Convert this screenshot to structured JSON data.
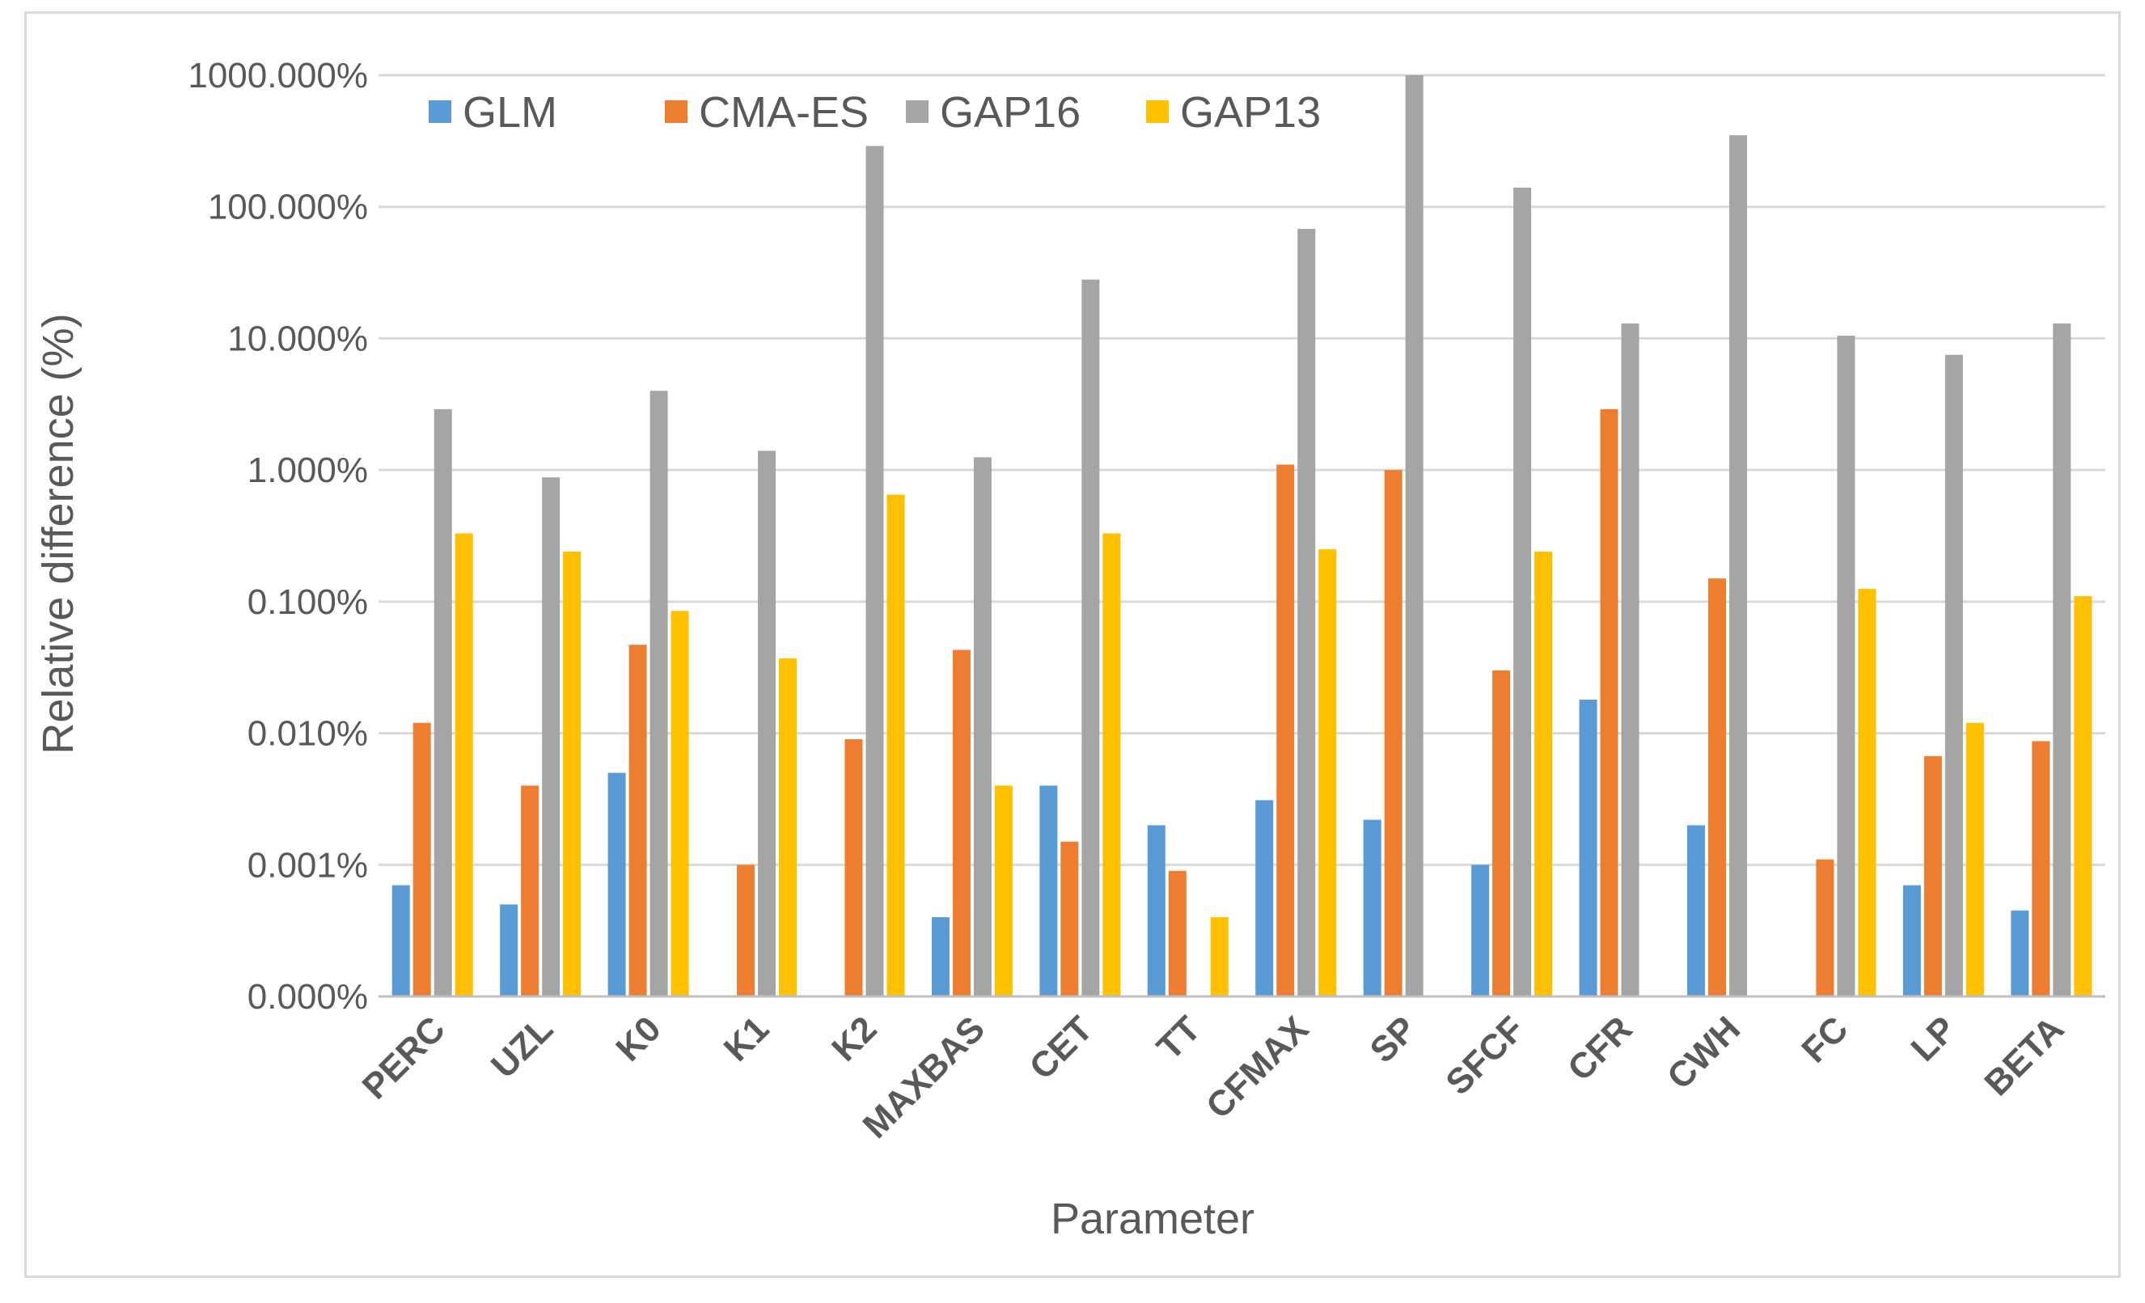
{
  "chart_data": {
    "type": "bar",
    "yscale": "log",
    "title": "",
    "xlabel": "Parameter",
    "ylabel": "Relative difference (%)",
    "y_tick_labels": [
      "0.000%",
      "0.001%",
      "0.010%",
      "0.100%",
      "1.000%",
      "10.000%",
      "100.000%",
      "1000.000%"
    ],
    "ylim_exponent": [
      -4,
      3
    ],
    "grid": true,
    "legend_position": "top-left",
    "categories": [
      "PERC",
      "UZL",
      "K0",
      "K1",
      "K2",
      "MAXBAS",
      "CET",
      "TT",
      "CFMAX",
      "SP",
      "SFCF",
      "CFR",
      "CWH",
      "FC",
      "LP",
      "BETA"
    ],
    "series": [
      {
        "name": "GLM",
        "color": "#5b9bd5",
        "values": [
          0.0007,
          0.0005,
          0.005,
          null,
          null,
          0.0004,
          0.004,
          0.002,
          0.0031,
          0.0022,
          0.001,
          0.018,
          0.002,
          null,
          0.0007,
          0.00045
        ]
      },
      {
        "name": "CMA-ES",
        "color": "#ed7d31",
        "values": [
          0.012,
          0.004,
          0.047,
          0.001,
          0.009,
          0.043,
          0.0015,
          0.0009,
          1.1,
          1.0,
          0.03,
          2.9,
          0.15,
          0.0011,
          0.0067,
          0.0087
        ]
      },
      {
        "name": "GAP16",
        "color": "#a5a5a5",
        "values": [
          2.9,
          0.88,
          4.0,
          1.4,
          290,
          1.25,
          28,
          null,
          68,
          1000,
          140,
          13,
          350,
          10.5,
          7.5,
          13
        ]
      },
      {
        "name": "GAP13",
        "color": "#ffc000",
        "values": [
          0.33,
          0.24,
          0.085,
          0.037,
          0.65,
          0.004,
          0.33,
          0.0004,
          0.25,
          null,
          0.24,
          null,
          null,
          0.125,
          0.012,
          0.11
        ]
      }
    ]
  }
}
